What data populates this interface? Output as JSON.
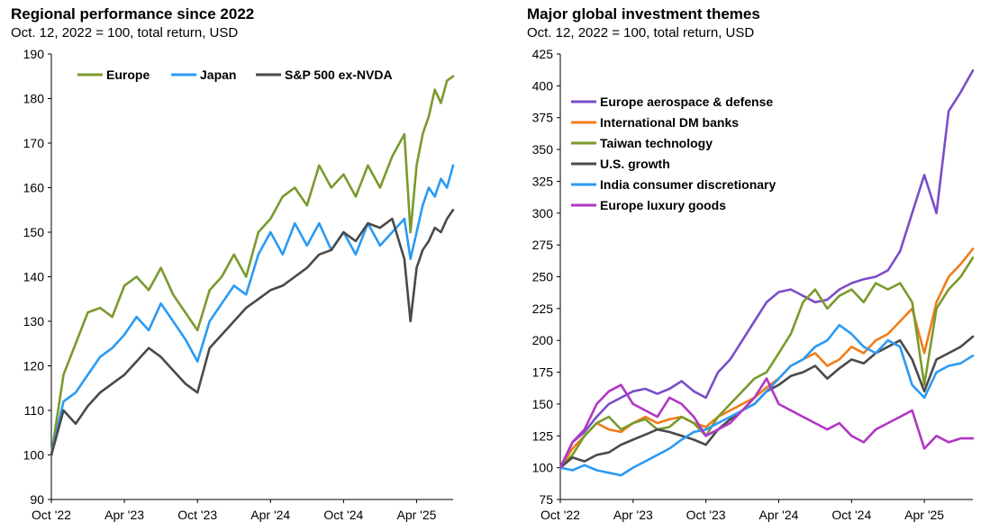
{
  "chart_data": [
    {
      "id": "left",
      "type": "line",
      "title": "Regional performance since 2022",
      "subtitle": "Oct. 12, 2022 = 100, total return, USD",
      "xlabel": "",
      "ylabel": "",
      "x_ticks": [
        "Oct '22",
        "Apr '23",
        "Oct '23",
        "Apr '24",
        "Oct '24",
        "Apr '25"
      ],
      "x_tick_positions": [
        0,
        6,
        12,
        18,
        24,
        30
      ],
      "x_range": [
        0,
        33
      ],
      "ylim": [
        90,
        190
      ],
      "y_ticks": [
        90,
        100,
        110,
        120,
        130,
        140,
        150,
        160,
        170,
        180,
        190
      ],
      "legend_position": "top-left",
      "series": [
        {
          "name": "Europe",
          "color": "#7a9a2e",
          "x": [
            0,
            1,
            2,
            3,
            4,
            5,
            6,
            7,
            8,
            9,
            10,
            11,
            12,
            13,
            14,
            15,
            16,
            17,
            18,
            19,
            20,
            21,
            22,
            23,
            24,
            25,
            26,
            27,
            28,
            29,
            29.5,
            30,
            30.5,
            31,
            31.5,
            32,
            32.5,
            33
          ],
          "values": [
            100,
            118,
            125,
            132,
            133,
            131,
            138,
            140,
            137,
            142,
            136,
            132,
            128,
            137,
            140,
            145,
            140,
            150,
            153,
            158,
            160,
            156,
            165,
            160,
            163,
            158,
            165,
            160,
            167,
            172,
            150,
            165,
            172,
            176,
            182,
            179,
            184,
            185
          ]
        },
        {
          "name": "Japan",
          "color": "#2b9af3",
          "x": [
            0,
            1,
            2,
            3,
            4,
            5,
            6,
            7,
            8,
            9,
            10,
            11,
            12,
            13,
            14,
            15,
            16,
            17,
            18,
            19,
            20,
            21,
            22,
            23,
            24,
            25,
            26,
            27,
            28,
            29,
            29.5,
            30,
            30.5,
            31,
            31.5,
            32,
            32.5,
            33
          ],
          "values": [
            100,
            112,
            114,
            118,
            122,
            124,
            127,
            131,
            128,
            134,
            130,
            126,
            121,
            130,
            134,
            138,
            136,
            145,
            150,
            145,
            152,
            147,
            152,
            146,
            150,
            145,
            152,
            147,
            150,
            153,
            144,
            150,
            156,
            160,
            158,
            162,
            160,
            165
          ]
        },
        {
          "name": "S&P 500 ex-NVDA",
          "color": "#4a4a4a",
          "x": [
            0,
            1,
            2,
            3,
            4,
            5,
            6,
            7,
            8,
            9,
            10,
            11,
            12,
            13,
            14,
            15,
            16,
            17,
            18,
            19,
            20,
            21,
            22,
            23,
            24,
            25,
            26,
            27,
            28,
            29,
            29.5,
            30,
            30.5,
            31,
            31.5,
            32,
            32.5,
            33
          ],
          "values": [
            100,
            110,
            107,
            111,
            114,
            116,
            118,
            121,
            124,
            122,
            119,
            116,
            114,
            124,
            127,
            130,
            133,
            135,
            137,
            138,
            140,
            142,
            145,
            146,
            150,
            148,
            152,
            151,
            153,
            144,
            130,
            142,
            146,
            148,
            151,
            150,
            153,
            155
          ]
        }
      ]
    },
    {
      "id": "right",
      "type": "line",
      "title": "Major global investment themes",
      "subtitle": "Oct. 12, 2022 = 100, total return, USD",
      "xlabel": "",
      "ylabel": "",
      "x_ticks": [
        "Oct '22",
        "Apr '23",
        "Oct '23",
        "Apr '24",
        "Oct '24",
        "Apr '25"
      ],
      "x_tick_positions": [
        0,
        6,
        12,
        18,
        24,
        30
      ],
      "x_range": [
        0,
        34
      ],
      "ylim": [
        75,
        425
      ],
      "y_ticks": [
        75,
        100,
        125,
        150,
        175,
        200,
        225,
        250,
        275,
        300,
        325,
        350,
        375,
        400,
        425
      ],
      "legend_position": "top-left",
      "series": [
        {
          "name": "Europe aerospace & defense",
          "color": "#7a4ec7",
          "x": [
            0,
            1,
            2,
            3,
            4,
            5,
            6,
            7,
            8,
            9,
            10,
            11,
            12,
            13,
            14,
            15,
            16,
            17,
            18,
            19,
            20,
            21,
            22,
            23,
            24,
            25,
            26,
            27,
            28,
            29,
            30,
            31,
            32,
            33,
            34
          ],
          "values": [
            100,
            120,
            128,
            140,
            150,
            155,
            160,
            162,
            158,
            162,
            168,
            160,
            155,
            175,
            185,
            200,
            215,
            230,
            238,
            240,
            235,
            230,
            232,
            240,
            245,
            248,
            250,
            255,
            270,
            300,
            330,
            300,
            380,
            395,
            412
          ]
        },
        {
          "name": "International DM banks",
          "color": "#f07c18",
          "x": [
            0,
            1,
            2,
            3,
            4,
            5,
            6,
            7,
            8,
            9,
            10,
            11,
            12,
            13,
            14,
            15,
            16,
            17,
            18,
            19,
            20,
            21,
            22,
            23,
            24,
            25,
            26,
            27,
            28,
            29,
            30,
            31,
            32,
            33,
            34
          ],
          "values": [
            100,
            115,
            125,
            135,
            130,
            128,
            135,
            140,
            135,
            138,
            140,
            135,
            132,
            140,
            145,
            150,
            155,
            163,
            170,
            180,
            185,
            190,
            180,
            185,
            195,
            190,
            200,
            205,
            215,
            225,
            190,
            230,
            250,
            260,
            272
          ]
        },
        {
          "name": "Taiwan technology",
          "color": "#7a9a2e",
          "x": [
            0,
            1,
            2,
            3,
            4,
            5,
            6,
            7,
            8,
            9,
            10,
            11,
            12,
            13,
            14,
            15,
            16,
            17,
            18,
            19,
            20,
            21,
            22,
            23,
            24,
            25,
            26,
            27,
            28,
            29,
            30,
            31,
            32,
            33,
            34
          ],
          "values": [
            100,
            110,
            125,
            135,
            140,
            130,
            135,
            138,
            130,
            132,
            140,
            135,
            125,
            140,
            150,
            160,
            170,
            175,
            190,
            205,
            230,
            240,
            225,
            235,
            240,
            230,
            245,
            240,
            245,
            230,
            165,
            225,
            240,
            250,
            265
          ]
        },
        {
          "name": "U.S. growth",
          "color": "#4a4a4a",
          "x": [
            0,
            1,
            2,
            3,
            4,
            5,
            6,
            7,
            8,
            9,
            10,
            11,
            12,
            13,
            14,
            15,
            16,
            17,
            18,
            19,
            20,
            21,
            22,
            23,
            24,
            25,
            26,
            27,
            28,
            29,
            30,
            31,
            32,
            33,
            34
          ],
          "values": [
            100,
            108,
            105,
            110,
            112,
            118,
            122,
            126,
            130,
            128,
            125,
            122,
            118,
            130,
            138,
            145,
            150,
            160,
            165,
            172,
            175,
            180,
            170,
            178,
            185,
            182,
            190,
            195,
            200,
            185,
            160,
            185,
            190,
            195,
            203
          ]
        },
        {
          "name": "India consumer discretionary",
          "color": "#2b9af3",
          "x": [
            0,
            1,
            2,
            3,
            4,
            5,
            6,
            7,
            8,
            9,
            10,
            11,
            12,
            13,
            14,
            15,
            16,
            17,
            18,
            19,
            20,
            21,
            22,
            23,
            24,
            25,
            26,
            27,
            28,
            29,
            30,
            31,
            32,
            33,
            34
          ],
          "values": [
            100,
            98,
            102,
            98,
            96,
            94,
            100,
            105,
            110,
            115,
            122,
            128,
            130,
            135,
            140,
            145,
            150,
            160,
            170,
            180,
            185,
            195,
            200,
            212,
            205,
            195,
            190,
            200,
            195,
            165,
            155,
            175,
            180,
            182,
            188
          ]
        },
        {
          "name": "Europe luxury goods",
          "color": "#b136c4",
          "x": [
            0,
            1,
            2,
            3,
            4,
            5,
            6,
            7,
            8,
            9,
            10,
            11,
            12,
            13,
            14,
            15,
            16,
            17,
            18,
            19,
            20,
            21,
            22,
            23,
            24,
            25,
            26,
            27,
            28,
            29,
            30,
            31,
            32,
            33,
            34
          ],
          "values": [
            100,
            120,
            130,
            150,
            160,
            165,
            150,
            145,
            140,
            155,
            150,
            140,
            125,
            130,
            135,
            145,
            155,
            170,
            150,
            145,
            140,
            135,
            130,
            135,
            125,
            120,
            130,
            135,
            140,
            145,
            115,
            125,
            120,
            123,
            123
          ]
        }
      ]
    }
  ]
}
